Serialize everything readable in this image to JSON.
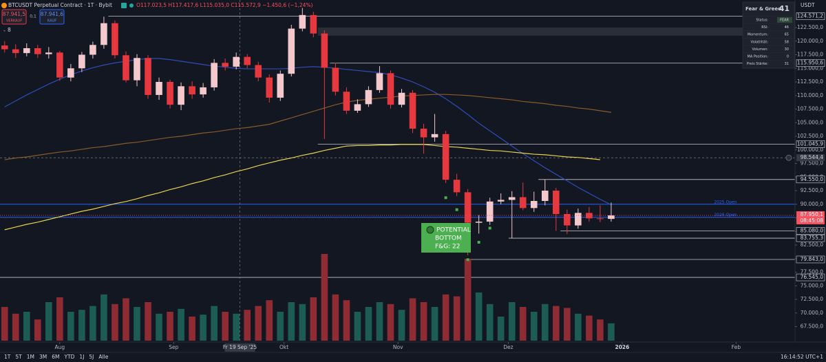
{
  "header": {
    "symbol": "BTCUSDT Perpetual Contract · 1T · Bybit",
    "ohlc": "O117.023,5 H117.417,6 L115.035,0 C115.572,9 −1.450,6 (−1,24%)",
    "indicator_count": 8
  },
  "trade": {
    "sell_price": "87.941,5",
    "sell_label": "VERKAUF",
    "size": "0,1",
    "buy_price": "87.941,6",
    "buy_label": "KAUF"
  },
  "fear_greed": {
    "title": "Fear & Greed",
    "value": 41,
    "rows": [
      [
        "Status:",
        "FEAR"
      ],
      [
        "RSI:",
        46
      ],
      [
        "Momentum:",
        65
      ],
      [
        "Volatilität:",
        58
      ],
      [
        "Volumen:",
        30
      ],
      [
        "MA Position:",
        0
      ],
      [
        "Preis Stärke:",
        31
      ]
    ]
  },
  "timeframes": [
    "1T",
    "5T",
    "1M",
    "3M",
    "6M",
    "YTD",
    "1J",
    "5J",
    "Alle"
  ],
  "clock": "16:14:52 UTC+1",
  "chart_data": {
    "type": "candlestick",
    "y_unit": "USDT",
    "categories": [
      null,
      null,
      null,
      null,
      null,
      null,
      null,
      null,
      null,
      null,
      null,
      null,
      null,
      null,
      null,
      null,
      null,
      null,
      null,
      null,
      null,
      null,
      null,
      null,
      null,
      null,
      null,
      null,
      null,
      null,
      null,
      null,
      null,
      null,
      null,
      null,
      null,
      null,
      null,
      null,
      null,
      null,
      null,
      null,
      null,
      null,
      null,
      null,
      null,
      null,
      null,
      null,
      null,
      null,
      null,
      null
    ],
    "open": [
      119200,
      118500,
      117800,
      118700,
      117600,
      117900,
      113300,
      115000,
      117500,
      119300,
      123300,
      117400,
      112800,
      116900,
      110100,
      112500,
      108300,
      111700,
      110200,
      111500,
      116000,
      115300,
      117100,
      115600,
      113300,
      109600,
      114000,
      122300,
      124800,
      121400,
      115100,
      110700,
      107200,
      108400,
      111000,
      114100,
      108300,
      110500,
      103900,
      102300,
      102900,
      94500,
      92200,
      86600,
      86800,
      90500,
      90800,
      91300,
      89300,
      90600,
      92500,
      88200,
      86100,
      88400,
      87400,
      87300
    ],
    "high": [
      120000,
      119400,
      119600,
      119300,
      118900,
      118200,
      115800,
      118000,
      119900,
      124500,
      123800,
      118100,
      117600,
      117400,
      113300,
      112900,
      112400,
      112600,
      112300,
      116700,
      116800,
      117900,
      117600,
      116200,
      113900,
      114600,
      123000,
      126100,
      125400,
      122000,
      116000,
      111500,
      109300,
      111700,
      115400,
      114600,
      111200,
      111000,
      104800,
      106600,
      103500,
      95600,
      92800,
      88000,
      91200,
      92000,
      92400,
      94000,
      92300,
      94600,
      93000,
      89000,
      89200,
      89500,
      89800,
      90300
    ],
    "low": [
      117900,
      116900,
      117200,
      116900,
      116800,
      112700,
      112600,
      114300,
      116800,
      118600,
      116800,
      112400,
      111700,
      109400,
      109200,
      107600,
      107300,
      109400,
      109600,
      110900,
      114600,
      114800,
      115000,
      112600,
      108700,
      109000,
      113500,
      121800,
      120700,
      102000,
      110000,
      106600,
      106800,
      107900,
      110500,
      107600,
      107800,
      103100,
      99300,
      101500,
      93900,
      91500,
      80600,
      84600,
      86200,
      90000,
      83800,
      88900,
      88600,
      89800,
      85100,
      84500,
      85500,
      86800,
      86700,
      86800
    ],
    "close": [
      118500,
      117800,
      118700,
      117600,
      117900,
      113300,
      115000,
      117500,
      119300,
      123300,
      117400,
      112800,
      116900,
      110100,
      112500,
      108300,
      111700,
      110200,
      111500,
      116000,
      115300,
      117100,
      115600,
      113300,
      109600,
      114000,
      122300,
      124800,
      121400,
      115100,
      110700,
      107200,
      108400,
      111000,
      114100,
      108300,
      110500,
      103900,
      102300,
      102900,
      94500,
      92200,
      86600,
      86800,
      90500,
      90800,
      91300,
      89300,
      90600,
      92500,
      88200,
      86100,
      88400,
      87400,
      87300,
      87950.1
    ],
    "up_color": "#f3c9cd",
    "down_color": "#e5393f",
    "volume": [
      35,
      28,
      30,
      22,
      40,
      45,
      30,
      32,
      36,
      48,
      38,
      44,
      35,
      40,
      28,
      30,
      33,
      25,
      27,
      36,
      30,
      28,
      32,
      36,
      42,
      30,
      40,
      38,
      45,
      90,
      48,
      42,
      30,
      35,
      40,
      38,
      32,
      44,
      40,
      35,
      48,
      46,
      85,
      50,
      38,
      25,
      40,
      35,
      30,
      38,
      36,
      34,
      28,
      26,
      22,
      18
    ],
    "volume_lim": [
      0,
      100
    ],
    "volume_up_color": "#1d5c55",
    "volume_down_color": "#8e2b33",
    "series": [
      {
        "color": "#2f4db8",
        "values": [
          107900,
          109000,
          110100,
          111100,
          112100,
          113000,
          113800,
          114500,
          115100,
          115600,
          116000,
          116300,
          116600,
          116800,
          116800,
          116600,
          116300,
          116000,
          115700,
          115400,
          115200,
          115000,
          114900,
          114900,
          114900,
          114900,
          115000,
          115200,
          115300,
          115200,
          115000,
          114800,
          114600,
          114400,
          114200,
          113800,
          113200,
          112500,
          111600,
          110600,
          109400,
          108000,
          106500,
          104900,
          103500,
          102100,
          100700,
          99300,
          98000,
          96700,
          95500,
          94300,
          93100,
          92000,
          90900,
          89900
        ]
      },
      {
        "color": "#8a5a2b",
        "values": [
          98200,
          98500,
          98700,
          99000,
          99300,
          99600,
          99800,
          100100,
          100400,
          100600,
          100900,
          101200,
          101400,
          101700,
          102000,
          102300,
          102500,
          102800,
          103100,
          103300,
          103600,
          103900,
          104100,
          104400,
          104700,
          105300,
          105900,
          106500,
          107100,
          107700,
          108300,
          108800,
          109100,
          109300,
          109500,
          109700,
          109900,
          110000,
          110100,
          110200,
          110200,
          110100,
          110000,
          109800,
          109600,
          109400,
          109200,
          108900,
          108700,
          108500,
          108200,
          108000,
          107700,
          107500,
          107200,
          106900
        ]
      },
      {
        "color": "#e8d44d",
        "values": [
          85300,
          85800,
          86300,
          86700,
          87200,
          87700,
          88200,
          88700,
          89100,
          89600,
          90100,
          90500,
          91000,
          91600,
          92100,
          92700,
          93200,
          93800,
          94300,
          94900,
          95400,
          96000,
          96500,
          97100,
          97600,
          98100,
          98500,
          99000,
          99400,
          99900,
          100300,
          100700,
          100800,
          100800,
          100900,
          100900,
          101000,
          101000,
          101000,
          100800,
          100600,
          100500,
          100300,
          100100,
          99900,
          99800,
          99600,
          99400,
          99200,
          99100,
          98900,
          98700,
          98600,
          98400,
          98200,
          null
        ]
      }
    ],
    "xlim": [
      -0.42,
      71.67
    ],
    "xticks": [
      {
        "value": 5,
        "label": "Aug"
      },
      {
        "value": 15.33,
        "label": "Sep"
      },
      {
        "value": 25.33,
        "label": "Okt"
      },
      {
        "value": 35.67,
        "label": "Nov"
      },
      {
        "value": 45.67,
        "label": "Dez"
      },
      {
        "value": 56,
        "label": "2026"
      },
      {
        "value": 66.33,
        "label": "Feb"
      }
    ],
    "ylim": [
      65000,
      127500
    ],
    "yticks": [
      {
        "value": 67500,
        "label": "67.500,0"
      },
      {
        "value": 70000,
        "label": "70.000,0"
      },
      {
        "value": 72500,
        "label": "72.500,0"
      },
      {
        "value": 75000,
        "label": "75.000,0"
      },
      {
        "value": 77500,
        "label": "77.500,0"
      },
      {
        "value": 80000,
        "label": "80.000,0"
      },
      {
        "value": 82500,
        "label": "82.500,0"
      },
      {
        "value": 85000,
        "label": "85.000,0"
      },
      {
        "value": 87500,
        "label": "87.500,0"
      },
      {
        "value": 90000,
        "label": "90.000,0"
      },
      {
        "value": 92500,
        "label": "92.500,0"
      },
      {
        "value": 95000,
        "label": "95.000,0"
      },
      {
        "value": 97500,
        "label": "97.500,0"
      },
      {
        "value": 100000,
        "label": "100.000,0"
      },
      {
        "value": 102500,
        "label": "102.500,0"
      },
      {
        "value": 105000,
        "label": "105.000,0"
      },
      {
        "value": 107500,
        "label": "107.500,0"
      },
      {
        "value": 110000,
        "label": "110.000,0"
      },
      {
        "value": 112500,
        "label": "112.500,0"
      },
      {
        "value": 115000,
        "label": "115.000,0"
      },
      {
        "value": 117500,
        "label": "117.500,0"
      },
      {
        "value": 120000,
        "label": "120.000,0"
      },
      {
        "value": 122500,
        "label": "122.500,0"
      }
    ],
    "levels": [
      {
        "value": 124571.2,
        "label": "124.571,2",
        "from": 9.4
      },
      {
        "value": 115950.6,
        "label": "115.950,6",
        "from": 29.5
      },
      {
        "value": 101045.9,
        "label": "101.045,9",
        "from": 28.4
      },
      {
        "value": 94550,
        "label": "94.550,0",
        "from": 48.4
      },
      {
        "value": 85080,
        "label": "85.080,0",
        "from": 50.4
      },
      {
        "value": 83755.3,
        "label": "83.755,3",
        "from": 45.7
      },
      {
        "value": 79843,
        "label": "79.843,0",
        "from": 41.9
      },
      {
        "value": 76545,
        "label": "76.545,0",
        "from": -0.42
      }
    ],
    "open_lines": [
      {
        "value": 90000,
        "label": "2025 Open",
        "color": "#2962ff"
      },
      {
        "value": 87600,
        "label": "2026 Open",
        "color": "#2962ff"
      }
    ],
    "zone": {
      "from": 28.4,
      "low": 121000,
      "high": 122500,
      "color": "#2a2e39"
    },
    "last_price": {
      "value": 87950.1,
      "label": "87.950,1",
      "countdown": "08:45:08",
      "color": "#f7525f"
    },
    "crosshair": {
      "x": 21.33,
      "label": "Fr 19 Sep '25",
      "y": 98544.4,
      "y_label": "98.544,4"
    },
    "signals": {
      "color": "#4caf50",
      "x": [
        40,
        41,
        42,
        43,
        44,
        42
      ],
      "y": [
        91200,
        89000,
        84500,
        83000,
        85600,
        79800
      ]
    },
    "annotation": [
      "POTENTIAL",
      "BOTTOM",
      "F&G: 22"
    ]
  }
}
